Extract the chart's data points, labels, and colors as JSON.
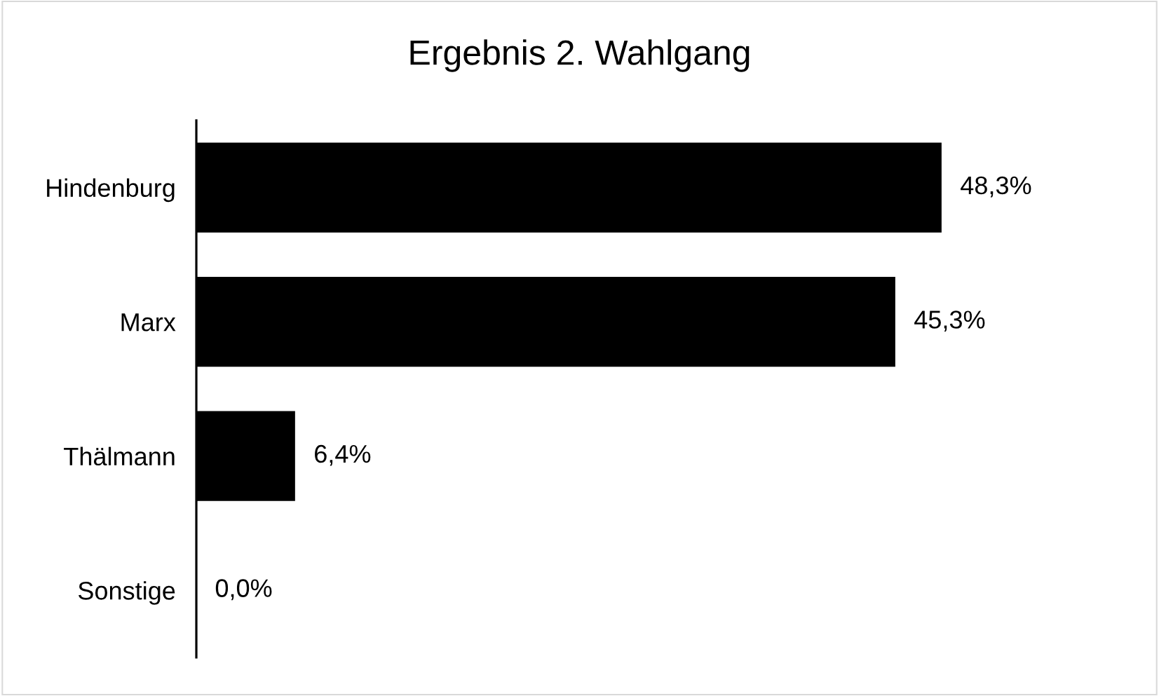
{
  "chart_data": {
    "type": "bar",
    "title": "Ergebnis 2. Wahlgang",
    "orientation": "horizontal",
    "categories": [
      "Hindenburg",
      "Marx",
      "Thälmann",
      "Sonstige"
    ],
    "values": [
      48.3,
      45.3,
      6.4,
      0.0
    ],
    "value_labels": [
      "48,3%",
      "45,3%",
      "6,4%",
      "0,0%"
    ],
    "color": "#000000",
    "tick_labels": "y"
  }
}
